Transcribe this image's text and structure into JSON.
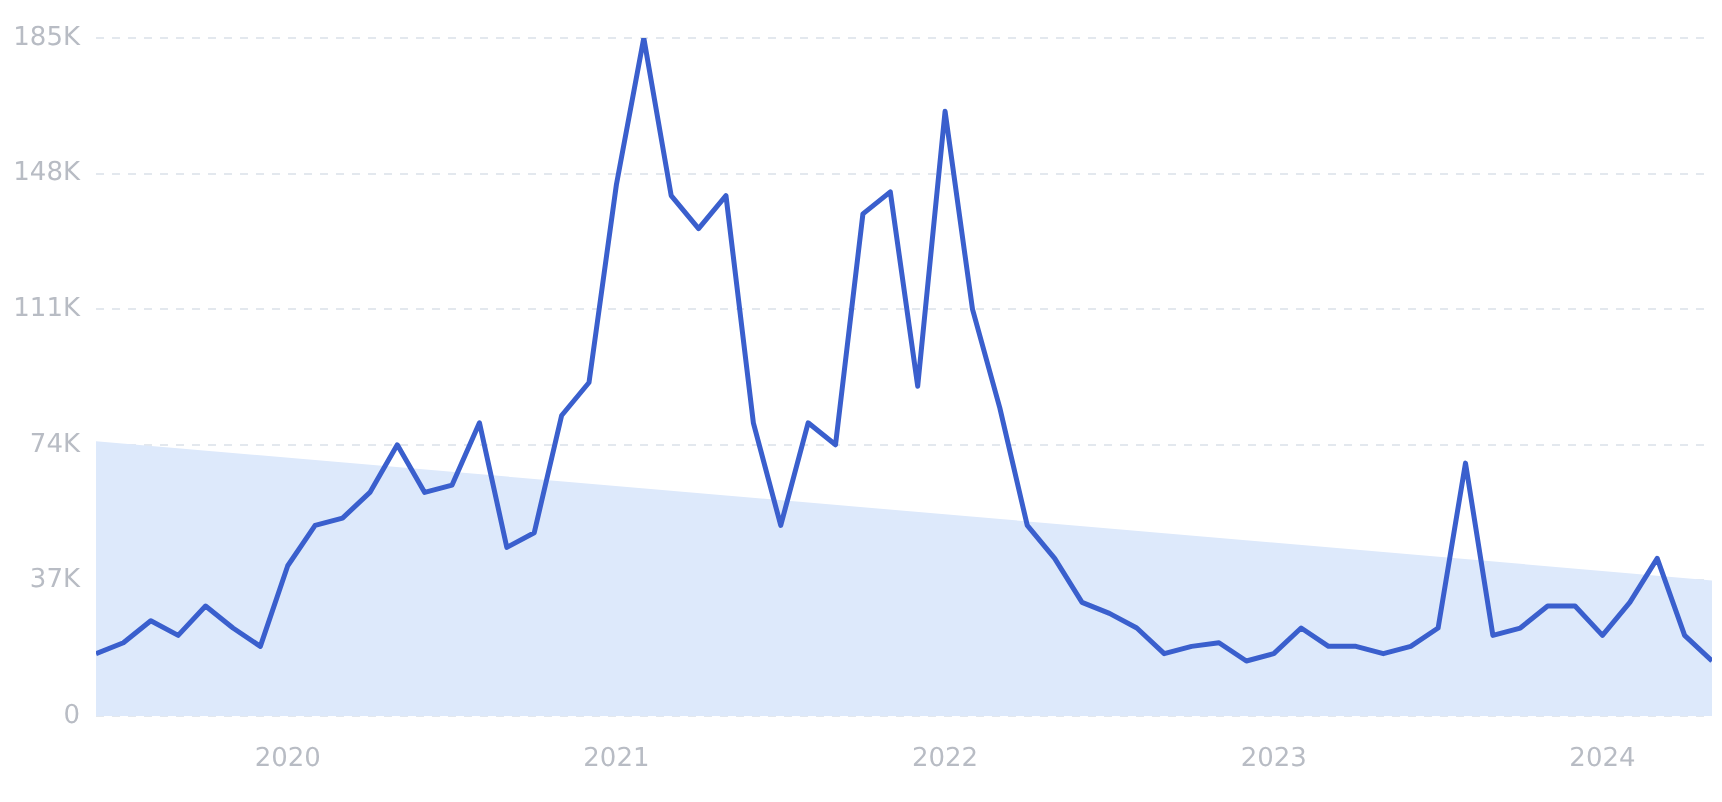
{
  "chart_data": {
    "type": "line",
    "x": [
      "2019-06",
      "2019-07",
      "2019-08",
      "2019-09",
      "2019-10",
      "2019-11",
      "2019-12",
      "2020-01",
      "2020-02",
      "2020-03",
      "2020-04",
      "2020-05",
      "2020-06",
      "2020-07",
      "2020-08",
      "2020-09",
      "2020-10",
      "2020-11",
      "2020-12",
      "2021-01",
      "2021-02",
      "2021-03",
      "2021-04",
      "2021-05",
      "2021-06",
      "2021-07",
      "2021-08",
      "2021-09",
      "2021-10",
      "2021-11",
      "2021-12",
      "2022-01",
      "2022-02",
      "2022-03",
      "2022-04",
      "2022-05",
      "2022-06",
      "2022-07",
      "2022-08",
      "2022-09",
      "2022-10",
      "2022-11",
      "2022-12",
      "2023-01",
      "2023-02",
      "2023-03",
      "2023-04",
      "2023-05",
      "2023-06",
      "2023-07",
      "2023-08",
      "2023-09",
      "2023-10",
      "2023-11",
      "2023-12",
      "2024-01",
      "2024-02",
      "2024-03",
      "2024-04",
      "2024-05"
    ],
    "series": [
      {
        "type": "area",
        "color": "#dde9fb",
        "x": [
          "2019-06",
          "2024-05"
        ],
        "values": [
          75000,
          37000
        ]
      },
      {
        "color": "#3a5fcd",
        "values": [
          17000,
          20000,
          26000,
          22000,
          30000,
          24000,
          19000,
          41000,
          52000,
          54000,
          61000,
          74000,
          61000,
          63000,
          80000,
          46000,
          50000,
          82000,
          91000,
          145000,
          185000,
          142000,
          133000,
          142000,
          80000,
          52000,
          80000,
          74000,
          137000,
          143000,
          90000,
          165000,
          111000,
          84000,
          52000,
          43000,
          31000,
          28000,
          24000,
          17000,
          19000,
          20000,
          15000,
          17000,
          24000,
          19000,
          19000,
          17000,
          19000,
          24000,
          69000,
          22000,
          24000,
          30000,
          30000,
          22000,
          31000,
          43000,
          22000,
          15000
        ]
      }
    ],
    "xlim": [
      "2019-06",
      "2024-05"
    ],
    "xticks": [
      {
        "value": "2020",
        "label": "2020"
      },
      {
        "value": "2021",
        "label": "2021"
      },
      {
        "value": "2022",
        "label": "2022"
      },
      {
        "value": "2023",
        "label": "2023"
      },
      {
        "value": "2024",
        "label": "2024"
      }
    ],
    "ylim": [
      0,
      185000
    ],
    "yticks": [
      {
        "value": 0,
        "label": "0"
      },
      {
        "value": 37000,
        "label": "37K"
      },
      {
        "value": 74000,
        "label": "74K"
      },
      {
        "value": 111000,
        "label": "111K"
      },
      {
        "value": 148000,
        "label": "148K"
      },
      {
        "value": 185000,
        "label": "185K"
      }
    ],
    "grid": "y",
    "legend": false,
    "line_style": "solid",
    "marker": "none"
  }
}
